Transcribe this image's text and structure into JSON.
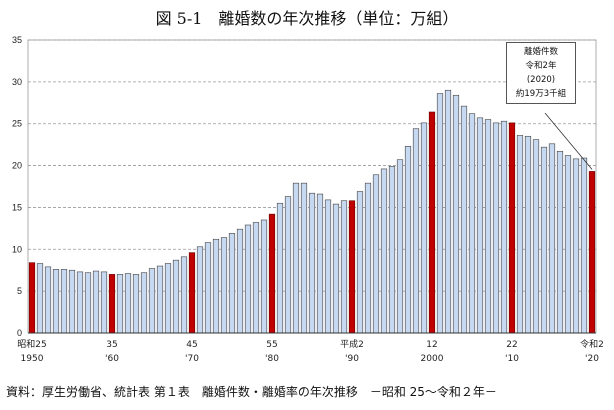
{
  "chart_data": {
    "type": "bar",
    "title": "図 5-1　離婚数の年次推移（単位：万組）",
    "ylim": [
      0,
      35
    ],
    "yticks": [
      0,
      5,
      10,
      15,
      20,
      25,
      30,
      35
    ],
    "grid": true,
    "x": [
      1950,
      1951,
      1952,
      1953,
      1954,
      1955,
      1956,
      1957,
      1958,
      1959,
      1960,
      1961,
      1962,
      1963,
      1964,
      1965,
      1966,
      1967,
      1968,
      1969,
      1970,
      1971,
      1972,
      1973,
      1974,
      1975,
      1976,
      1977,
      1978,
      1979,
      1980,
      1981,
      1982,
      1983,
      1984,
      1985,
      1986,
      1987,
      1988,
      1989,
      1990,
      1991,
      1992,
      1993,
      1994,
      1995,
      1996,
      1997,
      1998,
      1999,
      2000,
      2001,
      2002,
      2003,
      2004,
      2005,
      2006,
      2007,
      2008,
      2009,
      2010,
      2011,
      2012,
      2013,
      2014,
      2015,
      2016,
      2017,
      2018,
      2019,
      2020
    ],
    "values": [
      8.4,
      8.3,
      7.9,
      7.6,
      7.6,
      7.5,
      7.3,
      7.2,
      7.4,
      7.3,
      7.0,
      7.0,
      7.1,
      7.0,
      7.2,
      7.7,
      8.0,
      8.3,
      8.7,
      9.1,
      9.6,
      10.3,
      10.8,
      11.2,
      11.4,
      11.9,
      12.4,
      12.9,
      13.2,
      13.5,
      14.2,
      15.5,
      16.3,
      17.9,
      17.9,
      16.7,
      16.6,
      15.9,
      15.4,
      15.8,
      15.8,
      16.9,
      17.9,
      18.9,
      19.6,
      19.9,
      20.7,
      22.3,
      24.4,
      25.1,
      26.4,
      28.6,
      29.0,
      28.4,
      27.1,
      26.2,
      25.7,
      25.5,
      25.1,
      25.3,
      25.1,
      23.6,
      23.5,
      23.1,
      22.2,
      22.6,
      21.7,
      21.2,
      20.8,
      20.9,
      19.3
    ],
    "highlight_years": [
      1950,
      1960,
      1970,
      1980,
      1990,
      2000,
      2010,
      2020
    ],
    "colors": {
      "bar": "#c6d9f1",
      "bar_edge": "#404040",
      "highlight": "#c00000",
      "grid": "#999999"
    },
    "xtick_labels": [
      {
        "year": 1950,
        "era": "昭和25",
        "western": "1950"
      },
      {
        "year": 1960,
        "era": "35",
        "western": "'60"
      },
      {
        "year": 1970,
        "era": "45",
        "western": "'70"
      },
      {
        "year": 1980,
        "era": "55",
        "western": "'80"
      },
      {
        "year": 1990,
        "era": "平成2",
        "western": "'90"
      },
      {
        "year": 2000,
        "era": "12",
        "western": "2000"
      },
      {
        "year": 2010,
        "era": "22",
        "western": "'10"
      },
      {
        "year": 2020,
        "era": "令和2",
        "western": "'20"
      }
    ],
    "annotation": {
      "year": 2020,
      "lines": [
        "離婚件数",
        "令和2年",
        "(2020)",
        "約19万3千組"
      ]
    }
  },
  "source": "資料：厚生労働省、統計表 第１表　離婚件数・離婚率の年次推移　－昭和 25～令和２年－"
}
